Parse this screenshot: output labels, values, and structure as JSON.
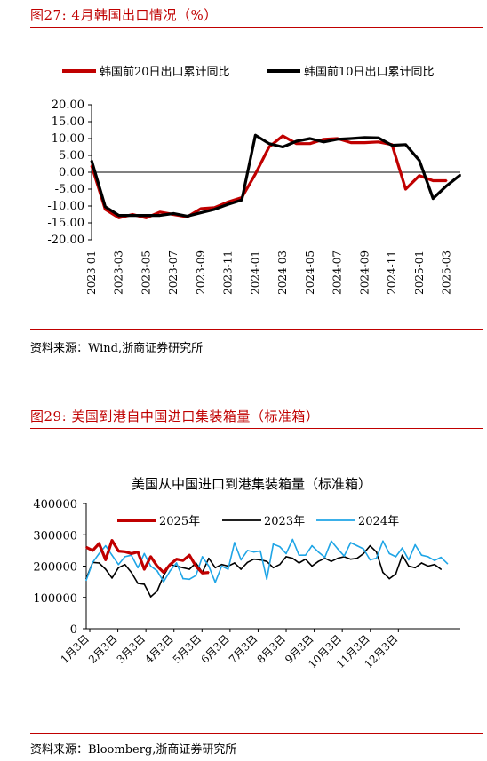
{
  "figure1": {
    "title": "图27:  4月韩国出口情况（%）",
    "source": "资料来源：Wind,浙商证券研究所"
  },
  "figure2": {
    "title": "图29:  美国到港自中国进口集装箱量（标准箱）",
    "source": "资料来源：Bloomberg,浙商证券研究所"
  },
  "colors": {
    "accent": "#c00000",
    "black": "#000000",
    "blue": "#1fa5e6"
  },
  "chart_data": [
    {
      "type": "line",
      "title": "",
      "ylim": [
        -20,
        20
      ],
      "yticks": [
        "20.00",
        "15.00",
        "10.00",
        "5.00",
        "0.00",
        "-5.00",
        "-10.00",
        "-15.00",
        "-20.00"
      ],
      "xticks": [
        "2023-01",
        "2023-03",
        "2023-05",
        "2023-07",
        "2023-09",
        "2023-11",
        "2024-01",
        "2024-03",
        "2024-05",
        "2024-07",
        "2024-09",
        "2024-11",
        "2025-01",
        "2025-03"
      ],
      "legend_position": "top",
      "series": [
        {
          "name": "韩国前20日出口累计同比",
          "color": "#c00000",
          "values": [
            2.0,
            -11.0,
            -13.5,
            -12.5,
            -13.5,
            -11.8,
            -12.5,
            -13.2,
            -10.8,
            -10.5,
            -8.8,
            -7.5,
            -0.5,
            7.5,
            10.8,
            8.5,
            8.5,
            9.8,
            10.0,
            8.8,
            8.8,
            9.0,
            8.2,
            -5.0,
            -1.0,
            -2.5,
            -2.5
          ]
        },
        {
          "name": "韩国前10日出口累计同比",
          "color": "#000000",
          "values": [
            3.5,
            -10.2,
            -12.8,
            -12.8,
            -12.8,
            -12.8,
            -12.2,
            -13.0,
            -12.0,
            -11.0,
            -9.5,
            -8.2,
            11.0,
            8.5,
            7.5,
            9.2,
            10.0,
            9.0,
            9.8,
            10.0,
            10.3,
            10.2,
            8.0,
            8.2,
            3.5,
            -7.8,
            -4.0,
            -0.8
          ]
        }
      ]
    },
    {
      "type": "line",
      "title": "美国从中国进口到港集装箱量（标准箱）",
      "ylim": [
        0,
        400000
      ],
      "yticks": [
        "400000",
        "300000",
        "200000",
        "100000",
        "0"
      ],
      "xticks": [
        "1月3日",
        "2月3日",
        "3月3日",
        "4月3日",
        "5月3日",
        "6月3日",
        "7月3日",
        "8月3日",
        "9月3日",
        "10月3日",
        "11月3日",
        "12月3日"
      ],
      "legend_position": "top",
      "series": [
        {
          "name": "2025年",
          "color": "#c00000",
          "values": [
            260000,
            250000,
            272000,
            220000,
            282000,
            248000,
            246000,
            240000,
            245000,
            190000,
            230000,
            200000,
            180000,
            205000,
            222000,
            218000,
            235000,
            200000,
            178000,
            180000
          ]
        },
        {
          "name": "2023年",
          "color": "#000000",
          "values": [
            160000,
            212000,
            210000,
            190000,
            162000,
            195000,
            205000,
            180000,
            145000,
            142000,
            102000,
            120000,
            170000,
            205000,
            200000,
            195000,
            190000,
            210000,
            180000,
            225000,
            195000,
            205000,
            200000,
            210000,
            190000,
            212000,
            222000,
            220000,
            215000,
            195000,
            205000,
            230000,
            225000,
            210000,
            222000,
            200000,
            215000,
            225000,
            215000,
            225000,
            230000,
            222000,
            225000,
            240000,
            265000,
            245000,
            180000,
            160000,
            175000,
            235000,
            200000,
            195000,
            210000,
            200000,
            205000,
            190000
          ]
        },
        {
          "name": "2024年",
          "color": "#1fa5e6",
          "values": [
            155000,
            212000,
            240000,
            265000,
            235000,
            205000,
            230000,
            235000,
            195000,
            240000,
            200000,
            185000,
            150000,
            185000,
            210000,
            160000,
            158000,
            170000,
            230000,
            200000,
            148000,
            200000,
            190000,
            275000,
            220000,
            250000,
            245000,
            248000,
            158000,
            270000,
            262000,
            240000,
            285000,
            235000,
            235000,
            265000,
            245000,
            228000,
            280000,
            255000,
            232000,
            275000,
            265000,
            255000,
            220000,
            225000,
            280000,
            240000,
            230000,
            258000,
            220000,
            268000,
            235000,
            230000,
            218000,
            228000,
            208000
          ]
        }
      ]
    }
  ]
}
